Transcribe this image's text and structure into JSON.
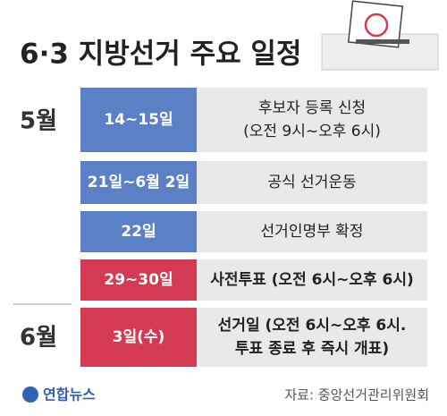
{
  "header": {
    "title": "6·3 지방선거 주요 일정"
  },
  "months": [
    "5월",
    "6월"
  ],
  "rows": [
    {
      "date": "14~15일",
      "event": [
        "후보자 등록 신청",
        "(오전 9시~오후 6시)"
      ],
      "color": "#5b80c6",
      "bold": false
    },
    {
      "date": "21일~6월 2일",
      "event": [
        "공식 선거운동"
      ],
      "color": "#5b80c6",
      "bold": false
    },
    {
      "date": "22일",
      "event": [
        "선거인명부 확정"
      ],
      "color": "#5b80c6",
      "bold": false
    },
    {
      "date": "29~30일",
      "event": [
        "사전투표 (오전 6시~오후 6시)"
      ],
      "color": "#d43a52",
      "bold": true
    },
    {
      "date": "3일(수)",
      "event": [
        "선거일 (오전 6시~오후 6시.",
        "투표 종료 후 즉시 개표)"
      ],
      "color": "#d43a52",
      "bold": true
    }
  ],
  "footer": {
    "logo": "연합뉴스",
    "source": "자료: 중앙선거관리위원회"
  }
}
